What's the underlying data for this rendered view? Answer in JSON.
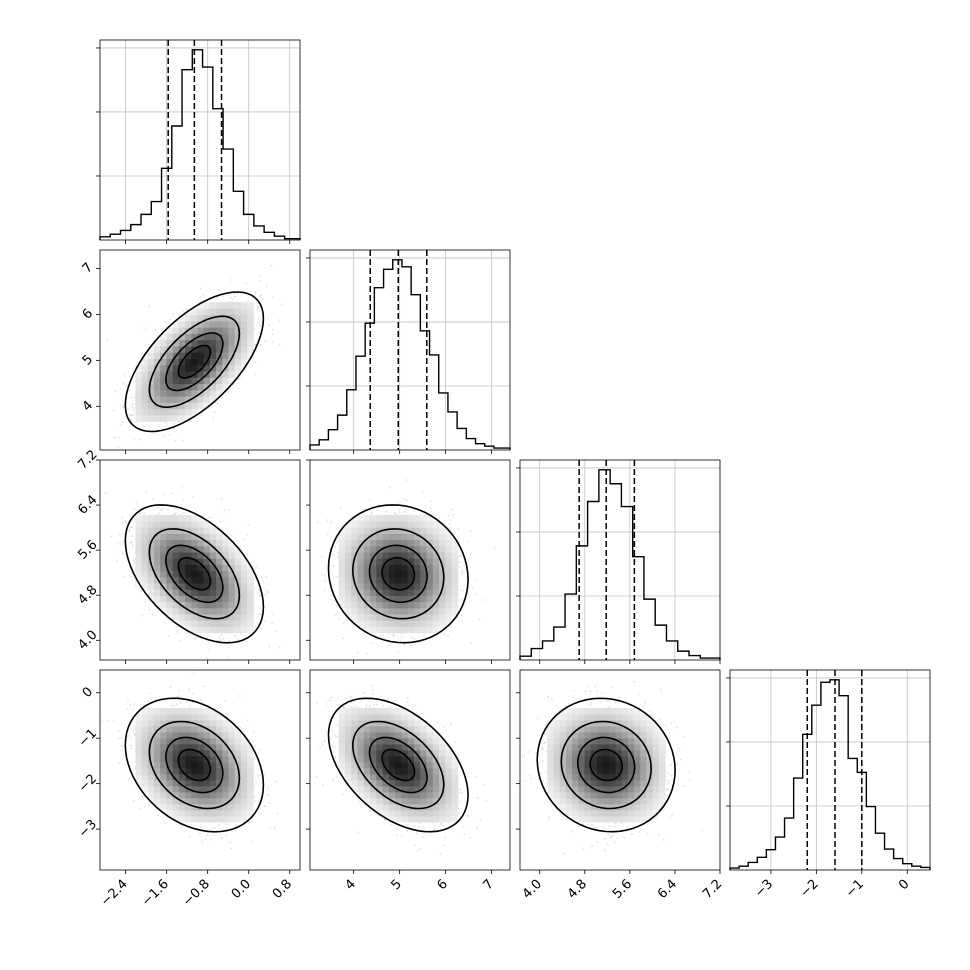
{
  "chart_data": {
    "type": "corner",
    "grid": true,
    "parameters": [
      {
        "range": [
          -2.9,
          1.0
        ],
        "ticks": [
          -2.4,
          -1.6,
          -0.8,
          0.0,
          0.8
        ],
        "tick_labels": [
          "−2.4",
          "−1.6",
          "−0.8",
          "0.0",
          "0.8"
        ],
        "quantiles": [
          -1.57,
          -1.06,
          -0.53
        ]
      },
      {
        "range": [
          3.05,
          7.4
        ],
        "ticks": [
          4,
          5,
          6,
          7
        ],
        "tick_labels": [
          "4",
          "5",
          "6",
          "7"
        ],
        "quantiles": [
          4.36,
          4.97,
          5.59
        ]
      },
      {
        "range": [
          3.65,
          7.2
        ],
        "ticks": [
          4.0,
          4.8,
          5.6,
          6.4,
          7.2
        ],
        "tick_labels": [
          "4.0",
          "4.8",
          "5.6",
          "6.4",
          "7.2"
        ],
        "quantiles": [
          4.7,
          5.18,
          5.68
        ]
      },
      {
        "range": [
          -3.9,
          0.5
        ],
        "ticks": [
          -3,
          -2,
          -1,
          0
        ],
        "tick_labels": [
          "−3",
          "−2",
          "−1",
          "0"
        ],
        "quantiles": [
          -2.2,
          -1.59,
          -1.0
        ]
      }
    ],
    "histograms": [
      {
        "param": 0,
        "edges": [
          -2.9,
          -2.7,
          -2.5,
          -2.3,
          -2.1,
          -1.9,
          -1.7,
          -1.5,
          -1.3,
          -1.1,
          -0.9,
          -0.7,
          -0.5,
          -0.3,
          -0.1,
          0.1,
          0.3,
          0.5,
          0.7,
          1.0
        ],
        "counts": [
          5,
          9,
          15,
          24,
          40,
          60,
          112,
          178,
          266,
          297,
          270,
          205,
          142,
          76,
          40,
          22,
          12,
          6,
          2
        ]
      },
      {
        "param": 1,
        "edges": [
          3.05,
          3.25,
          3.45,
          3.65,
          3.85,
          4.05,
          4.25,
          4.45,
          4.65,
          4.85,
          5.05,
          5.25,
          5.45,
          5.65,
          5.85,
          6.05,
          6.25,
          6.45,
          6.65,
          6.85,
          7.05,
          7.4
        ],
        "counts": [
          8,
          16,
          32,
          55,
          95,
          148,
          200,
          256,
          285,
          300,
          289,
          245,
          188,
          150,
          90,
          60,
          34,
          18,
          10,
          6,
          3
        ]
      },
      {
        "param": 2,
        "edges": [
          3.65,
          3.85,
          4.05,
          4.25,
          4.45,
          4.65,
          4.85,
          5.05,
          5.25,
          5.45,
          5.65,
          5.85,
          6.05,
          6.25,
          6.45,
          6.65,
          6.85,
          7.2
        ],
        "counts": [
          6,
          18,
          30,
          52,
          104,
          180,
          250,
          300,
          278,
          242,
          163,
          96,
          55,
          30,
          14,
          7,
          3
        ]
      },
      {
        "param": 3,
        "edges": [
          -3.9,
          -3.7,
          -3.5,
          -3.3,
          -3.1,
          -2.9,
          -2.7,
          -2.5,
          -2.3,
          -2.1,
          -1.9,
          -1.7,
          -1.5,
          -1.3,
          -1.1,
          -0.9,
          -0.7,
          -0.5,
          -0.3,
          -0.1,
          0.1,
          0.3,
          0.5
        ],
        "counts": [
          3,
          6,
          12,
          20,
          32,
          52,
          82,
          145,
          214,
          260,
          296,
          300,
          275,
          176,
          154,
          100,
          58,
          33,
          18,
          10,
          6,
          4
        ]
      }
    ],
    "pairs": [
      {
        "x": 0,
        "y": 1,
        "center": [
          -1.06,
          4.97
        ],
        "sd": [
          0.55,
          0.62
        ],
        "rho": 0.62,
        "seed": 11
      },
      {
        "x": 0,
        "y": 2,
        "center": [
          -1.06,
          5.18
        ],
        "sd": [
          0.55,
          0.5
        ],
        "rho": -0.48,
        "seed": 23
      },
      {
        "x": 1,
        "y": 2,
        "center": [
          4.97,
          5.18
        ],
        "sd": [
          0.62,
          0.5
        ],
        "rho": -0.08,
        "seed": 37
      },
      {
        "x": 0,
        "y": 3,
        "center": [
          -1.06,
          -1.59
        ],
        "sd": [
          0.55,
          0.6
        ],
        "rho": -0.3,
        "seed": 41
      },
      {
        "x": 1,
        "y": 3,
        "center": [
          4.97,
          -1.59
        ],
        "sd": [
          0.62,
          0.6
        ],
        "rho": -0.45,
        "seed": 53
      },
      {
        "x": 2,
        "y": 3,
        "center": [
          5.18,
          -1.59
        ],
        "sd": [
          0.5,
          0.6
        ],
        "rho": -0.08,
        "seed": 67
      }
    ]
  }
}
